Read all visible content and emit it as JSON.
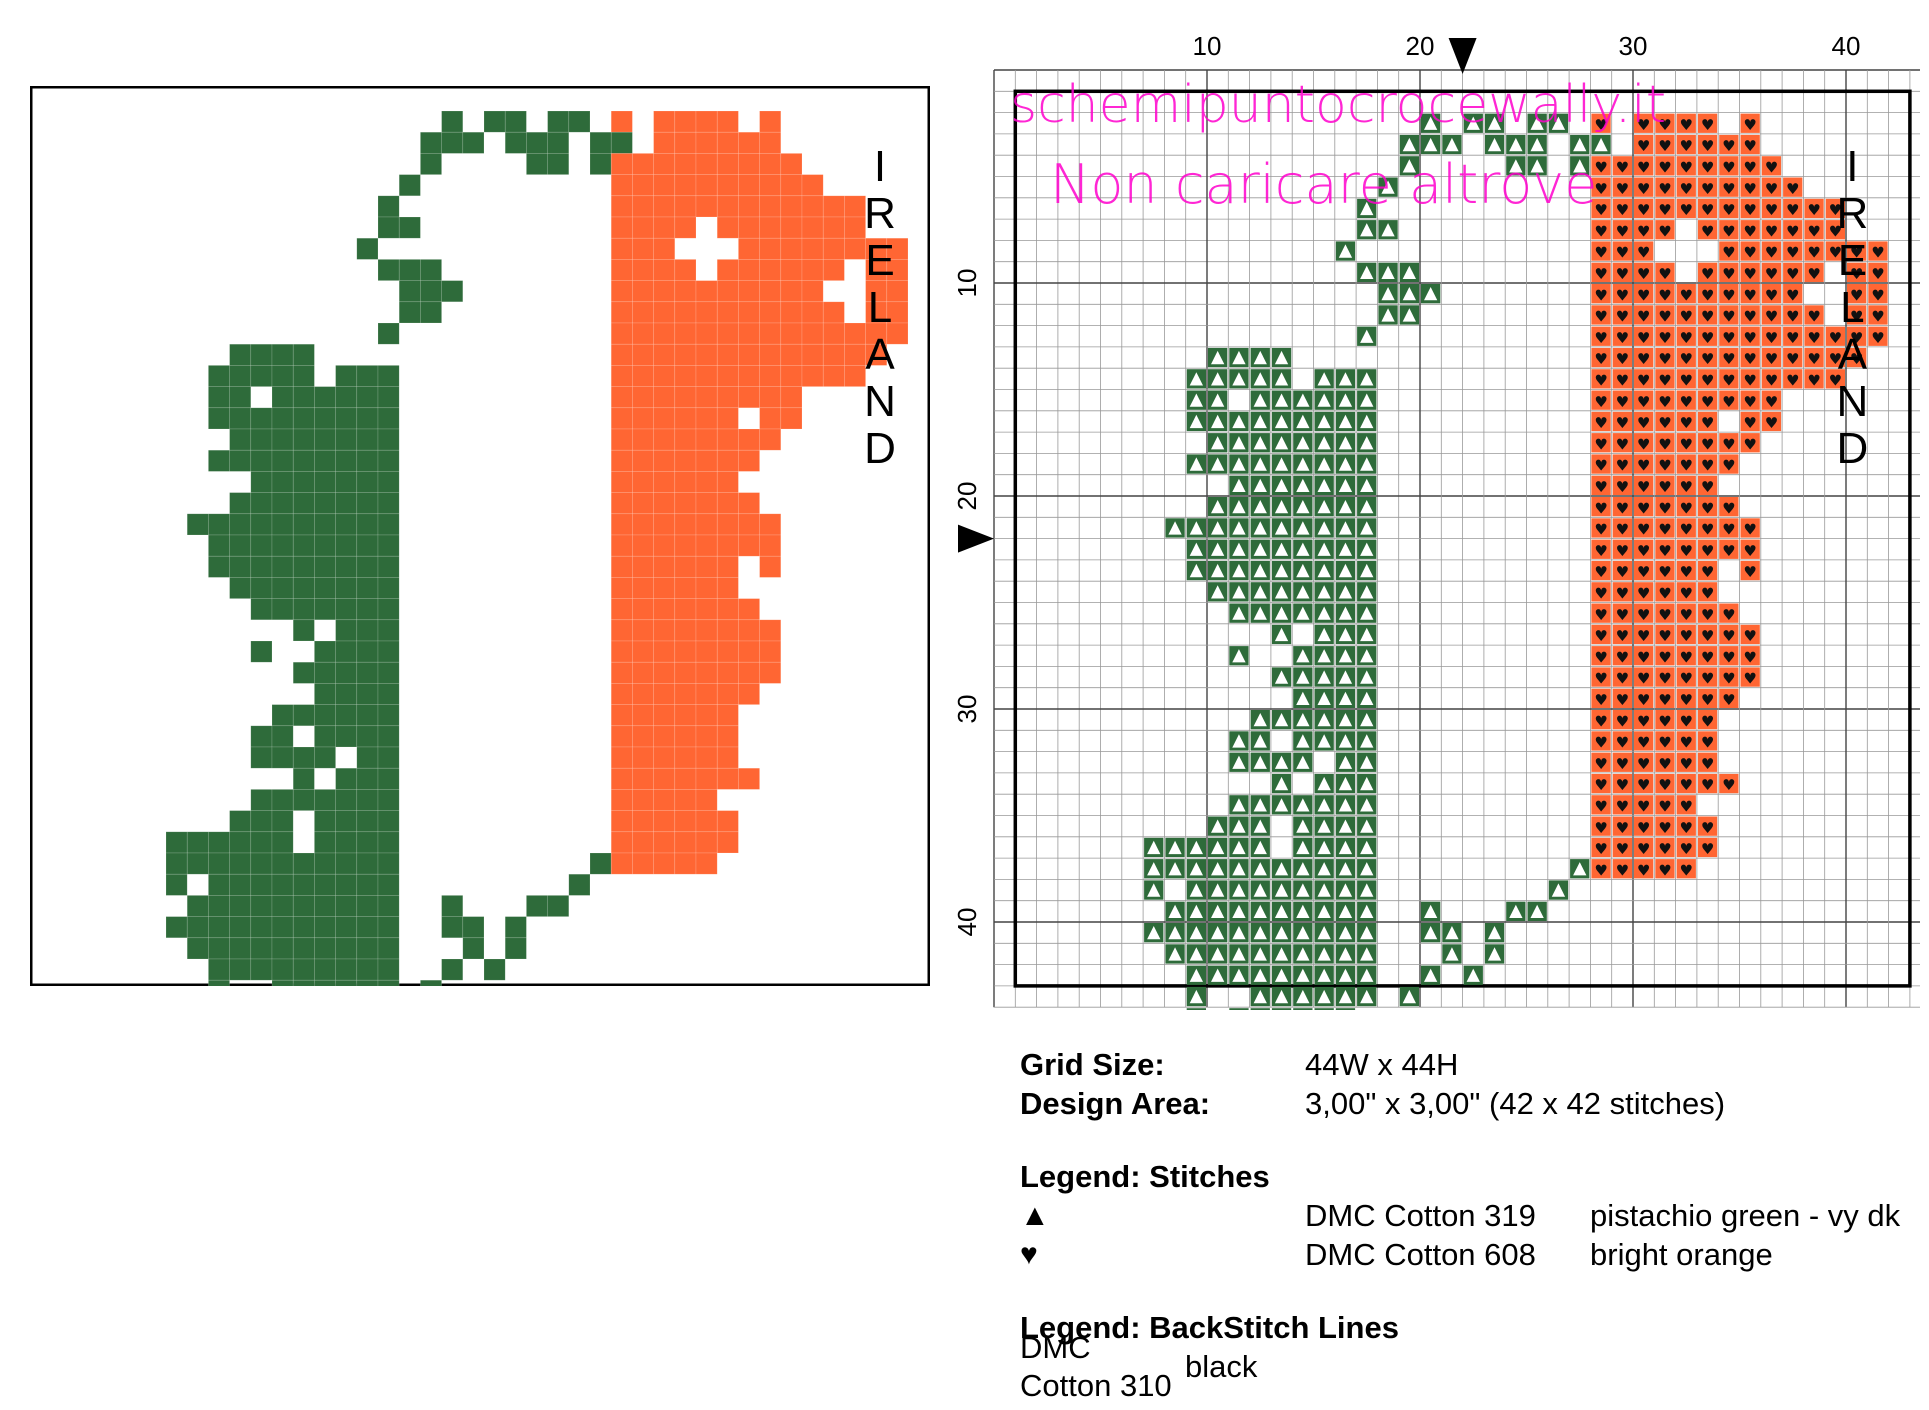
{
  "colors": {
    "green": "#2e6b3a",
    "orange": "#ff6633",
    "watermark": "#ff00cc"
  },
  "preview": {
    "label_letters": [
      "I",
      "R",
      "E",
      "L",
      "A",
      "N",
      "D"
    ]
  },
  "chart": {
    "top_ticks": [
      "10",
      "20",
      "30",
      "40"
    ],
    "left_ticks": [
      "10",
      "20",
      "30",
      "40"
    ],
    "label_letters": [
      "I",
      "R",
      "E",
      "L",
      "A",
      "N",
      "D"
    ],
    "watermark_line1": "schemipuntocrocewally.it",
    "watermark_line2": "Non caricare altrove"
  },
  "pattern_rows": [
    ".............G.GG.GG.O.OOOO.O..........",
    "............GGG.GGG.GG.OOOOOO...........",
    "............G....GG.GOOOOOOOOO..........",
    "...........G.........OOOOOOOOOO.........",
    "..........G..........OOOOOOOOOOOO.......",
    "..........GG.........OOOO.OOOOOOO.......",
    ".........G...........OOO...OOOOOOOO.....",
    "..........GGG........OOOO.OOOOOO.OO.....",
    "...........GGG.......OOOOOOOOOO..OO.....",
    "...........GG........OOOOOOOOOOO.OO.....",
    "..........G..........OOOOOOOOOOOOOO.....",
    "...GGGG..............OOOOOOOOOOOOO......",
    "..GGGGG.GGG..........OOOOOOOOOOOO.......",
    "..GG.GGGGGG..........OOOOOOOOO..........",
    "..GGGGGGGGG..........OOOOOO.OO..........",
    "...GGGGGGGG..........OOOOOOOO...........",
    "..GGGGGGGGG..........OOOOOOO............",
    "....GGGGGGG..........OOOOOO.............",
    "...GGGGGGGG..........OOOOOOO............",
    ".GGGGGGGGGG..........OOOOOOOO...........",
    "..GGGGGGGGG..........OOOOOOOO...........",
    "..GGGGGGGGG..........OOOOOO.O...........",
    "...GGGGGGGG..........OOOOOO.............",
    "....GGGGGGG..........OOOOOOO............",
    "......G.GGG..........OOOOOOOO...........",
    "....G..GGGG..........OOOOOOOO...........",
    "......GGGGG..........OOOOOOOO...........",
    ".......GGGG..........OOOOOOO............",
    ".....GGGGGG..........OOOOOO.............",
    "....GG.GGGG..........OOOOOO.............",
    "....GGGG.GG..........OOOOOO.............",
    "......G.GGG..........OOOOOOO............",
    "....GGGGGGG..........OOOOO..............",
    "...GGG.GGGG..........OOOOOO.............",
    "GGGGGG.GGGG..........OOOOOO.............",
    "GGGGGGGGGGG.........GOOOOO..............",
    "G.GGGGGGGGG........G....................",
    ".GGGGGGGGGG..G...GG.....................",
    "GGGGGGGGGGG..GG.G.......................",
    ".GGGGGGGGGG...G.G.......................",
    "..GGGGGGGGG..G.G........................",
    "..G..GGGGGG.G...........................",
    "..G.GGGGGG..............................",
    "........................................"
  ],
  "legend": {
    "grid_size_label": "Grid Size:",
    "grid_size_value": "44W x 44H",
    "design_area_label": "Design Area:",
    "design_area_value": "3,00\" x 3,00\"   (42 x 42 stitches)",
    "stitches_title": "Legend: Stitches",
    "stitches": [
      {
        "symbol": "▲",
        "thread": "DMC Cotton 319",
        "color_name": "pistachio green - vy dk"
      },
      {
        "symbol": "♥",
        "thread": "DMC Cotton 608",
        "color_name": "bright orange"
      }
    ],
    "backstitch_title": "Legend: BackStitch Lines",
    "backstitch_thread": "DMC Cotton 310",
    "backstitch_color": "black"
  }
}
